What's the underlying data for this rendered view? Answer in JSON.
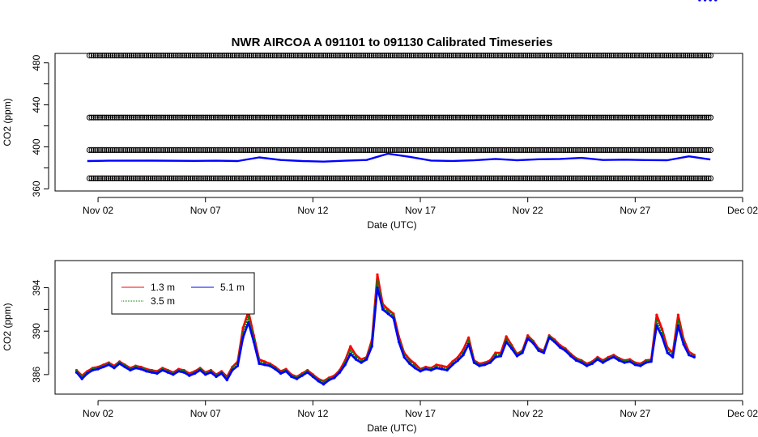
{
  "chart_data": [
    {
      "type": "scatter",
      "title": "NWR   AIRCOA  A   091101  to  091130   Calibrated Timeseries",
      "xlabel": "Date (UTC)",
      "ylabel": "CO2 (ppm)",
      "x_start": "2009-10-31",
      "x_end": "2009-12-02",
      "x_ticks": [
        "Nov 02",
        "Nov 07",
        "Nov 12",
        "Nov 17",
        "Nov 22",
        "Nov 27",
        "Dec 02"
      ],
      "y_ticks": [
        360,
        400,
        440,
        480
      ],
      "ylim": [
        358,
        489
      ],
      "series": [
        {
          "role": "calibration-standard",
          "marker": "open-circle",
          "color": "#000000",
          "value": 487,
          "x_range": [
            "2009-11-01",
            "2009-11-30"
          ]
        },
        {
          "role": "calibration-standard",
          "marker": "open-circle",
          "color": "#000000",
          "value": 428,
          "x_range": [
            "2009-11-01",
            "2009-11-30"
          ]
        },
        {
          "role": "calibration-standard",
          "marker": "open-circle",
          "color": "#000000",
          "value": 397,
          "x_range": [
            "2009-11-01",
            "2009-11-30"
          ]
        },
        {
          "role": "calibration-standard",
          "marker": "open-circle",
          "color": "#000000",
          "value": 370,
          "x_range": [
            "2009-11-01",
            "2009-11-30"
          ]
        },
        {
          "role": "ambient",
          "color": "#0000ff",
          "x": [
            "2009-11-01",
            "2009-11-02",
            "2009-11-04",
            "2009-11-06",
            "2009-11-07",
            "2009-11-08",
            "2009-11-09",
            "2009-11-10",
            "2009-11-11",
            "2009-11-12",
            "2009-11-13",
            "2009-11-14",
            "2009-11-15",
            "2009-11-16",
            "2009-11-17",
            "2009-11-18",
            "2009-11-19",
            "2009-11-20",
            "2009-11-21",
            "2009-11-22",
            "2009-11-23",
            "2009-11-24",
            "2009-11-25",
            "2009-11-26",
            "2009-11-27",
            "2009-11-28",
            "2009-11-29",
            "2009-11-30"
          ],
          "y": [
            386.5,
            386.8,
            386.9,
            386.7,
            386.8,
            386.5,
            390,
            387.5,
            386.5,
            386,
            386.8,
            387.5,
            393.5,
            390.5,
            387,
            386.6,
            387.2,
            388.5,
            387.3,
            388.2,
            388.5,
            389.5,
            387.5,
            387.8,
            387.4,
            387.3,
            391,
            388.0
          ]
        }
      ]
    },
    {
      "type": "scatter",
      "xlabel": "Date (UTC)",
      "ylabel": "CO2 (ppm)",
      "x_start": "2009-10-31",
      "x_end": "2009-12-02",
      "x_ticks": [
        "Nov 02",
        "Nov 07",
        "Nov 12",
        "Nov 17",
        "Nov 22",
        "Nov 27",
        "Dec 02"
      ],
      "y_ticks": [
        386,
        390,
        394
      ],
      "ylim": [
        384.2,
        396.5
      ],
      "legend": {
        "placement": "top-left",
        "entries": [
          "1.3 m",
          "3.5 m",
          "5.1 m"
        ]
      },
      "x": [
        "2009-11-01 00:00",
        "2009-11-01 06:00",
        "2009-11-01 12:00",
        "2009-11-01 18:00",
        "2009-11-02 00:00",
        "2009-11-02 06:00",
        "2009-11-02 12:00",
        "2009-11-02 18:00",
        "2009-11-03 00:00",
        "2009-11-03 06:00",
        "2009-11-03 12:00",
        "2009-11-03 18:00",
        "2009-11-04 00:00",
        "2009-11-04 06:00",
        "2009-11-04 12:00",
        "2009-11-04 18:00",
        "2009-11-05 00:00",
        "2009-11-05 06:00",
        "2009-11-05 12:00",
        "2009-11-05 18:00",
        "2009-11-06 00:00",
        "2009-11-06 06:00",
        "2009-11-06 12:00",
        "2009-11-06 18:00",
        "2009-11-07 00:00",
        "2009-11-07 06:00",
        "2009-11-07 12:00",
        "2009-11-07 18:00",
        "2009-11-08 00:00",
        "2009-11-08 06:00",
        "2009-11-08 12:00",
        "2009-11-08 18:00",
        "2009-11-09 00:00",
        "2009-11-09 06:00",
        "2009-11-09 12:00",
        "2009-11-09 18:00",
        "2009-11-10 00:00",
        "2009-11-10 06:00",
        "2009-11-10 12:00",
        "2009-11-10 18:00",
        "2009-11-11 00:00",
        "2009-11-11 06:00",
        "2009-11-11 12:00",
        "2009-11-11 18:00",
        "2009-11-12 00:00",
        "2009-11-12 06:00",
        "2009-11-12 12:00",
        "2009-11-12 18:00",
        "2009-11-13 00:00",
        "2009-11-13 06:00",
        "2009-11-13 12:00",
        "2009-11-13 18:00",
        "2009-11-14 00:00",
        "2009-11-14 06:00",
        "2009-11-14 12:00",
        "2009-11-14 18:00",
        "2009-11-15 00:00",
        "2009-11-15 06:00",
        "2009-11-15 12:00",
        "2009-11-15 18:00",
        "2009-11-16 00:00",
        "2009-11-16 06:00",
        "2009-11-16 12:00",
        "2009-11-16 18:00",
        "2009-11-17 00:00",
        "2009-11-17 06:00",
        "2009-11-17 12:00",
        "2009-11-17 18:00",
        "2009-11-18 00:00",
        "2009-11-18 06:00",
        "2009-11-18 12:00",
        "2009-11-18 18:00",
        "2009-11-19 00:00",
        "2009-11-19 06:00",
        "2009-11-19 12:00",
        "2009-11-19 18:00",
        "2009-11-20 00:00",
        "2009-11-20 06:00",
        "2009-11-20 12:00",
        "2009-11-20 18:00",
        "2009-11-21 00:00",
        "2009-11-21 06:00",
        "2009-11-21 12:00",
        "2009-11-21 18:00",
        "2009-11-22 00:00",
        "2009-11-22 06:00",
        "2009-11-22 12:00",
        "2009-11-22 18:00",
        "2009-11-23 00:00",
        "2009-11-23 06:00",
        "2009-11-23 12:00",
        "2009-11-23 18:00",
        "2009-11-24 00:00",
        "2009-11-24 06:00",
        "2009-11-24 12:00",
        "2009-11-24 18:00",
        "2009-11-25 00:00",
        "2009-11-25 06:00",
        "2009-11-25 12:00",
        "2009-11-25 18:00",
        "2009-11-26 00:00",
        "2009-11-26 06:00",
        "2009-11-26 12:00",
        "2009-11-26 18:00",
        "2009-11-27 00:00",
        "2009-11-27 06:00",
        "2009-11-27 12:00",
        "2009-11-27 18:00",
        "2009-11-28 00:00",
        "2009-11-28 06:00",
        "2009-11-28 12:00",
        "2009-11-28 18:00",
        "2009-11-29 00:00",
        "2009-11-29 06:00",
        "2009-11-29 12:00",
        "2009-11-29 18:00",
        "2009-11-30 00:00",
        "2009-11-30 06:00",
        "2009-11-30 12:00",
        "2009-11-30 18:00"
      ],
      "series": [
        {
          "name": "1.3 m",
          "color": "#ff0000",
          "values": [
            386.4,
            385.9,
            386.3,
            386.6,
            386.7,
            386.9,
            387.1,
            386.8,
            387.2,
            386.9,
            386.6,
            386.8,
            386.7,
            386.5,
            386.4,
            386.3,
            386.6,
            386.4,
            386.2,
            386.5,
            386.4,
            386.1,
            386.3,
            386.6,
            386.2,
            386.4,
            386.0,
            386.3,
            385.8,
            386.7,
            387.2,
            390.3,
            391.8,
            389.6,
            387.4,
            387.2,
            387.0,
            386.7,
            386.3,
            386.5,
            386.0,
            385.8,
            386.1,
            386.4,
            386.0,
            385.6,
            385.4,
            385.7,
            385.9,
            386.4,
            387.3,
            388.6,
            387.8,
            387.4,
            387.6,
            389.2,
            395.2,
            392.5,
            392.0,
            391.6,
            389.5,
            388.0,
            387.4,
            387.0,
            386.5,
            386.7,
            386.6,
            386.9,
            386.8,
            386.7,
            387.2,
            387.6,
            388.3,
            389.4,
            387.3,
            387.0,
            387.1,
            387.3,
            388.0,
            388.0,
            389.5,
            388.7,
            387.9,
            388.2,
            389.6,
            389.1,
            388.4,
            388.2,
            389.6,
            389.2,
            388.7,
            388.4,
            387.9,
            387.5,
            387.3,
            387.0,
            387.2,
            387.6,
            387.3,
            387.6,
            387.8,
            387.5,
            387.3,
            387.4,
            387.1,
            387.0,
            387.3,
            387.4,
            391.5,
            390.2,
            388.5,
            388.0,
            391.5,
            389.3,
            388.1,
            387.8
          ]
        },
        {
          "name": "3.5 m",
          "color": "#008000",
          "values": [
            386.3,
            385.8,
            386.2,
            386.5,
            386.6,
            386.8,
            387.0,
            386.7,
            387.1,
            386.8,
            386.5,
            386.7,
            386.6,
            386.4,
            386.3,
            386.2,
            386.5,
            386.3,
            386.1,
            386.4,
            386.3,
            386.0,
            386.2,
            386.5,
            386.1,
            386.3,
            385.9,
            386.2,
            385.7,
            386.6,
            387.0,
            389.8,
            391.3,
            389.3,
            387.2,
            387.0,
            386.9,
            386.6,
            386.2,
            386.4,
            385.9,
            385.7,
            386.0,
            386.3,
            385.9,
            385.5,
            385.3,
            385.6,
            385.8,
            386.3,
            387.1,
            388.2,
            387.6,
            387.2,
            387.5,
            388.9,
            394.6,
            392.2,
            391.8,
            391.4,
            389.2,
            387.8,
            387.2,
            386.8,
            386.4,
            386.6,
            386.5,
            386.7,
            386.6,
            386.5,
            387.0,
            387.4,
            388.0,
            389.1,
            387.2,
            386.9,
            387.0,
            387.2,
            387.8,
            387.8,
            389.2,
            388.5,
            387.8,
            388.1,
            389.4,
            389.0,
            388.3,
            388.1,
            389.5,
            389.1,
            388.6,
            388.3,
            387.8,
            387.4,
            387.2,
            386.9,
            387.1,
            387.5,
            387.2,
            387.5,
            387.7,
            387.4,
            387.2,
            387.3,
            387.0,
            386.9,
            387.2,
            387.3,
            391.0,
            389.8,
            388.2,
            387.8,
            391.0,
            389.0,
            387.9,
            387.7
          ]
        },
        {
          "name": "5.1 m",
          "color": "#0000ff",
          "values": [
            386.2,
            385.6,
            386.1,
            386.4,
            386.5,
            386.7,
            386.9,
            386.6,
            387.0,
            386.7,
            386.4,
            386.6,
            386.5,
            386.3,
            386.2,
            386.1,
            386.4,
            386.2,
            386.0,
            386.3,
            386.2,
            385.9,
            386.1,
            386.4,
            386.0,
            386.2,
            385.8,
            386.1,
            385.5,
            386.4,
            386.8,
            389.4,
            390.8,
            389.0,
            387.0,
            386.9,
            386.8,
            386.5,
            386.1,
            386.3,
            385.8,
            385.6,
            385.9,
            386.2,
            385.8,
            385.4,
            385.1,
            385.5,
            385.7,
            386.2,
            386.9,
            387.9,
            387.4,
            387.1,
            387.4,
            388.6,
            394.0,
            392.0,
            391.6,
            391.2,
            389.0,
            387.6,
            387.0,
            386.6,
            386.3,
            386.5,
            386.4,
            386.6,
            386.5,
            386.4,
            386.9,
            387.3,
            387.8,
            388.8,
            387.1,
            386.8,
            386.9,
            387.1,
            387.6,
            387.7,
            389.0,
            388.4,
            387.7,
            388.0,
            389.3,
            388.9,
            388.2,
            388.0,
            389.4,
            389.0,
            388.5,
            388.2,
            387.7,
            387.3,
            387.1,
            386.8,
            387.0,
            387.4,
            387.1,
            387.4,
            387.6,
            387.3,
            387.1,
            387.2,
            386.9,
            386.8,
            387.1,
            387.2,
            390.5,
            389.5,
            388.0,
            387.6,
            390.5,
            388.8,
            387.8,
            387.6
          ]
        }
      ]
    }
  ]
}
